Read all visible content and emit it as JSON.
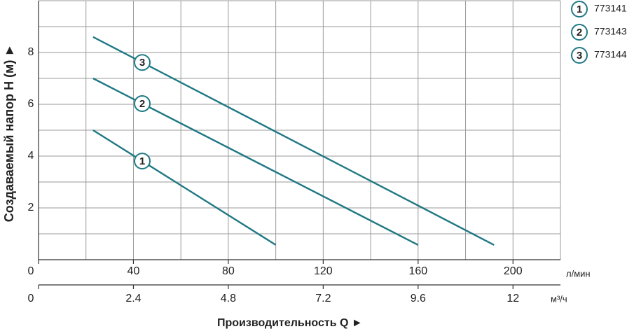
{
  "chart_data": {
    "type": "line",
    "x_label": "Производительность Q ►",
    "y_label": "Создаваемый напор H (м) ►",
    "x_unit": "л/мин",
    "x2_unit": "м³/ч",
    "xlim": [
      0,
      220
    ],
    "xticks": [
      0,
      40,
      80,
      120,
      160,
      200
    ],
    "xminor": [
      20,
      60,
      100,
      140,
      180,
      220
    ],
    "x2lim": [
      0,
      13.2
    ],
    "x2ticks": [
      0,
      2.4,
      4.8,
      7.2,
      9.6,
      12
    ],
    "ylim": [
      0,
      10
    ],
    "yticks": [
      2,
      4,
      6,
      8
    ],
    "yminor": [
      1,
      3,
      5,
      7,
      9,
      10
    ],
    "grid": true,
    "color": "#1f7884",
    "series": [
      {
        "name": "773141",
        "marker": "1",
        "x": [
          23,
          100
        ],
        "values": [
          5.0,
          0.57
        ]
      },
      {
        "name": "773143",
        "marker": "2",
        "x": [
          23,
          160
        ],
        "values": [
          7.0,
          0.57
        ]
      },
      {
        "name": "773144",
        "marker": "3",
        "x": [
          23,
          192
        ],
        "values": [
          8.6,
          0.57
        ]
      }
    ]
  }
}
